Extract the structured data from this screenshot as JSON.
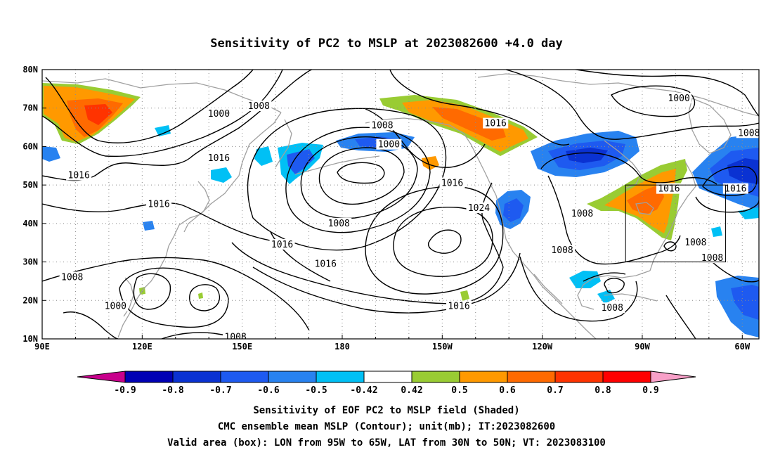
{
  "title": "Sensitivity of PC2 to MSLP at 2023082600 +4.0 day",
  "map": {
    "lon_range": [
      90,
      305
    ],
    "lat_range": [
      10,
      80
    ],
    "lon_ticks": [
      {
        "lon": 90,
        "label": "90E"
      },
      {
        "lon": 120,
        "label": "120E"
      },
      {
        "lon": 150,
        "label": "150E"
      },
      {
        "lon": 180,
        "label": "180"
      },
      {
        "lon": 210,
        "label": "150W"
      },
      {
        "lon": 240,
        "label": "120W"
      },
      {
        "lon": 270,
        "label": "90W"
      },
      {
        "lon": 300,
        "label": "60W"
      }
    ],
    "lat_ticks": [
      {
        "lat": 80,
        "label": "80N"
      },
      {
        "lat": 70,
        "label": "70N"
      },
      {
        "lat": 60,
        "label": "60N"
      },
      {
        "lat": 50,
        "label": "50N"
      },
      {
        "lat": 40,
        "label": "40N"
      },
      {
        "lat": 30,
        "label": "30N"
      },
      {
        "lat": 20,
        "label": "20N"
      },
      {
        "lat": 10,
        "label": "10N"
      }
    ],
    "valid_box": {
      "lon": [
        265,
        295
      ],
      "lat": [
        30,
        50
      ]
    },
    "contour_labels": [
      {
        "text": "1000",
        "lon": 143,
        "lat": 68.5
      },
      {
        "text": "1008",
        "lon": 155,
        "lat": 70.5
      },
      {
        "text": "1008",
        "lon": 192,
        "lat": 65.5
      },
      {
        "text": "1016",
        "lon": 226,
        "lat": 66
      },
      {
        "text": "1000",
        "lon": 281,
        "lat": 72.5
      },
      {
        "text": "1008",
        "lon": 302,
        "lat": 63.5
      },
      {
        "text": "1000",
        "lon": 194,
        "lat": 60.5
      },
      {
        "text": "1016",
        "lon": 143,
        "lat": 57
      },
      {
        "text": "1016",
        "lon": 101,
        "lat": 52.5
      },
      {
        "text": "1016",
        "lon": 125,
        "lat": 45
      },
      {
        "text": "1016",
        "lon": 213,
        "lat": 50.5
      },
      {
        "text": "1024",
        "lon": 221,
        "lat": 44
      },
      {
        "text": "1008",
        "lon": 179,
        "lat": 40
      },
      {
        "text": "1016",
        "lon": 162,
        "lat": 34.5
      },
      {
        "text": "1016",
        "lon": 175,
        "lat": 29.5
      },
      {
        "text": "1008",
        "lon": 99,
        "lat": 26
      },
      {
        "text": "1000",
        "lon": 112,
        "lat": 18.5
      },
      {
        "text": "1016",
        "lon": 215,
        "lat": 18.5
      },
      {
        "text": "1008",
        "lon": 148,
        "lat": 10.5
      },
      {
        "text": "1008",
        "lon": 252,
        "lat": 42.5
      },
      {
        "text": "1008",
        "lon": 246,
        "lat": 33
      },
      {
        "text": "1016",
        "lon": 278,
        "lat": 49
      },
      {
        "text": "1016",
        "lon": 298,
        "lat": 49
      },
      {
        "text": "1008",
        "lon": 286,
        "lat": 35
      },
      {
        "text": "1008",
        "lon": 291,
        "lat": 31
      },
      {
        "text": "1008",
        "lon": 261,
        "lat": 18
      }
    ]
  },
  "colorbar": {
    "labels": [
      "-0.9",
      "-0.8",
      "-0.7",
      "-0.6",
      "-0.5",
      "-0.42",
      "0.42",
      "0.5",
      "0.6",
      "0.7",
      "0.8",
      "0.9"
    ],
    "colors": [
      "#0000b4",
      "#0a32d2",
      "#1e5af0",
      "#2882f0",
      "#00c0f5",
      "#ffffff",
      "#99cc33",
      "#ff9900",
      "#ff6a00",
      "#ff3300",
      "#ff0000"
    ],
    "low_extend_color": "#c8008c",
    "high_extend_color": "#f8a0c8"
  },
  "captions": {
    "line1": "Sensitivity of EOF PC2 to MSLP field (Shaded)",
    "line2": "CMC ensemble mean MSLP (Contour); unit(mb); IT:2023082600",
    "line3": "Valid area (box): LON from 95W to 65W, LAT from 30N to 50N; VT: 2023083100"
  },
  "colors": {
    "land_outline": "#a0a0a0",
    "contour": "#000000",
    "grid": "#8c8c8c"
  }
}
